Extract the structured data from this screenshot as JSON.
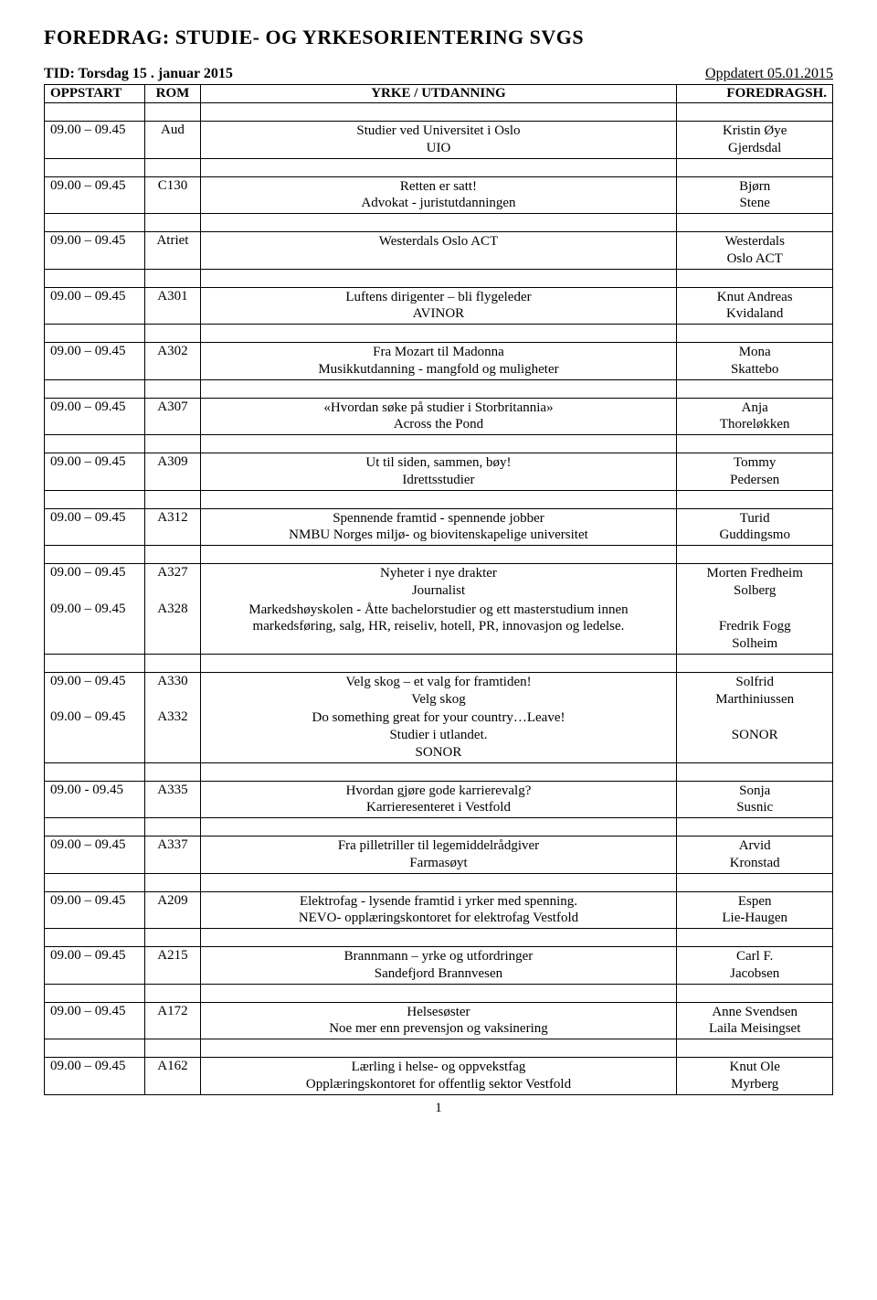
{
  "doc": {
    "title": "FOREDRAG:  STUDIE-  OG  YRKESORIENTERING  SVGS",
    "tid": "TID: Torsdag 15 . januar 2015",
    "updated": "Oppdatert 05.01.2015",
    "page_number": "1"
  },
  "headers": {
    "oppstart": "OPPSTART",
    "rom": "ROM",
    "yrke": "YRKE / UTDANNING",
    "foredragsh": "FOREDRAGSH."
  },
  "rows": [
    {
      "time": "09.00 – 09.45",
      "room": "Aud",
      "topic": "Studier ved Universitet i Oslo",
      "sub": "UIO",
      "speaker1": "Kristin Øye",
      "speaker2": "Gjerdsdal"
    },
    {
      "time": "09.00 – 09.45",
      "room": "C130",
      "topic": "Retten er satt!",
      "sub": "Advokat - juristutdanningen",
      "speaker1": "Bjørn",
      "speaker2": "Stene"
    },
    {
      "time": "09.00 – 09.45",
      "room": "Atriet",
      "topic": "Westerdals Oslo ACT",
      "sub": "",
      "speaker1": "Westerdals",
      "speaker2": "Oslo ACT"
    },
    {
      "time": "09.00 – 09.45",
      "room": "A301",
      "topic": "Luftens dirigenter – bli flygeleder",
      "sub": "AVINOR",
      "speaker1": "Knut Andreas",
      "speaker2": "Kvidaland"
    },
    {
      "time": "09.00 – 09.45",
      "room": "A302",
      "topic": "Fra Mozart til Madonna",
      "sub": "Musikkutdanning - mangfold og muligheter",
      "speaker1": "Mona",
      "speaker2": "Skattebo"
    },
    {
      "time": "09.00 – 09.45",
      "room": "A307",
      "topic": "«Hvordan søke på studier i Storbritannia»",
      "sub": "Across the Pond",
      "speaker1": "Anja",
      "speaker2": "Thoreløkken"
    },
    {
      "time": "09.00 – 09.45",
      "room": "A309",
      "topic": "Ut til siden, sammen, bøy!",
      "sub": "Idrettsstudier",
      "speaker1": "Tommy",
      "speaker2": "Pedersen"
    },
    {
      "time": "09.00 – 09.45",
      "room": "A312",
      "topic": "Spennende framtid - spennende jobber",
      "sub": "NMBU Norges miljø- og biovitenskapelige universitet",
      "speaker1": "Turid",
      "speaker2": "Guddingsmo"
    },
    {
      "time": "09.00 – 09.45",
      "room": "A327",
      "topic": "Nyheter i nye drakter",
      "sub": "Journalist",
      "speaker1": "Morten Fredheim",
      "speaker2": "Solberg"
    },
    {
      "time": "09.00 – 09.45",
      "room": "A328",
      "topic": "Markedshøyskolen - Åtte bachelorstudier og ett masterstudium innen markedsføring, salg, HR, reiseliv, hotell, PR, innovasjon og ledelse.",
      "sub": "",
      "speaker1": "Fredrik Fogg",
      "speaker2": "Solheim",
      "prepend_blank": true
    },
    {
      "time": "09.00 – 09.45",
      "room": "A330",
      "topic": "Velg skog – et valg for framtiden!",
      "sub": "Velg skog",
      "speaker1": "Solfrid",
      "speaker2": "Marthiniussen"
    },
    {
      "time": "09.00 – 09.45",
      "room": "A332",
      "topic": "Do something great for your country…Leave!",
      "sub": "Studier i utlandet.",
      "sub2": "SONOR",
      "speaker1": "",
      "speaker2": "SONOR",
      "prepend_blank": true
    },
    {
      "time": "09.00 - 09.45",
      "room": "A335",
      "topic": "Hvordan gjøre gode karrierevalg?",
      "sub": "Karrieresenteret i Vestfold",
      "speaker1": "Sonja",
      "speaker2": "Susnic"
    },
    {
      "time": "09.00 – 09.45",
      "room": "A337",
      "topic": "Fra pilletriller til legemiddelrådgiver",
      "sub": "Farmasøyt",
      "speaker1": "Arvid",
      "speaker2": "Kronstad"
    },
    {
      "time": "09.00 – 09.45",
      "room": "A209",
      "topic": "Elektrofag - lysende framtid i yrker med spenning.",
      "sub": "NEVO- opplæringskontoret for elektrofag Vestfold",
      "speaker1": "Espen",
      "speaker2": "Lie-Haugen"
    },
    {
      "time": "09.00 – 09.45",
      "room": "A215",
      "topic": "Brannmann – yrke og utfordringer",
      "sub": "Sandefjord Brannvesen",
      "speaker1": "Carl F.",
      "speaker2": "Jacobsen"
    },
    {
      "time": "09.00 – 09.45",
      "room": "A172",
      "topic": "Helsesøster",
      "sub": "Noe mer enn prevensjon og vaksinering",
      "speaker1": "Anne Svendsen",
      "speaker2": "Laila Meisingset"
    },
    {
      "time": "09.00 – 09.45",
      "room": "A162",
      "topic": "Lærling i helse- og oppvekstfag",
      "sub": "Opplæringskontoret for offentlig sektor Vestfold",
      "speaker1": "Knut Ole",
      "speaker2": "Myrberg"
    }
  ]
}
